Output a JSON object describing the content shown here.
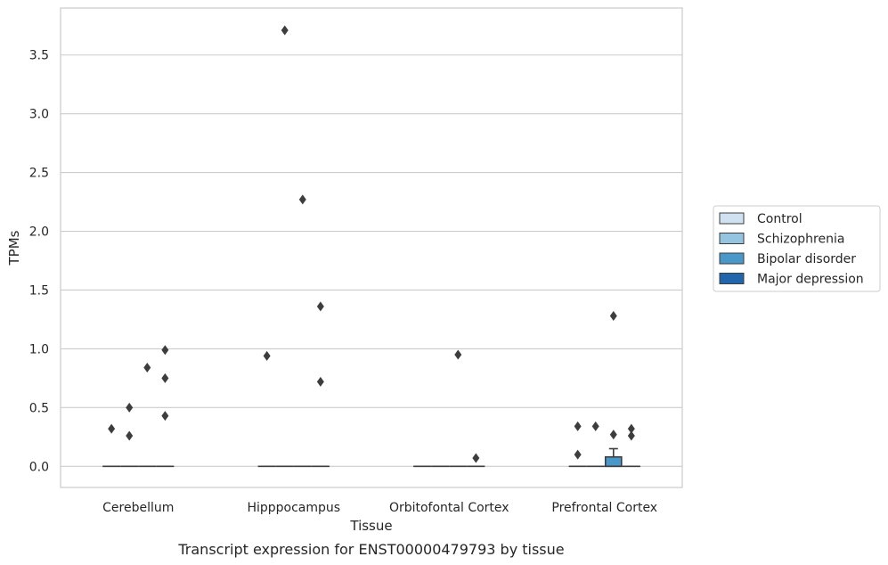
{
  "chart_data": {
    "type": "box",
    "xlabel": "Tissue",
    "ylabel": "TPMs",
    "caption": "Transcript expression for ENST00000479793 by tissue",
    "categories": [
      "Cerebellum",
      "Hipppocampus",
      "Orbitofontal Cortex",
      "Prefrontal Cortex"
    ],
    "ylim": [
      -0.18,
      3.9
    ],
    "yticks": [
      0.0,
      0.5,
      1.0,
      1.5,
      2.0,
      2.5,
      3.0,
      3.5
    ],
    "ytick_labels": [
      "0.0",
      "0.5",
      "1.0",
      "1.5",
      "2.0",
      "2.5",
      "3.0",
      "3.5"
    ],
    "grid": "horizontal",
    "legend": {
      "placement": "right",
      "entries": [
        "Control",
        "Schizophrenia",
        "Bipolar disorder",
        "Major depression"
      ]
    },
    "series": [
      {
        "name": "Control",
        "color": "#d0e1f2",
        "boxes": [
          {
            "category": "Cerebellum",
            "q1": 0,
            "median": 0,
            "q3": 0,
            "whisker_low": 0,
            "whisker_high": 0,
            "outliers": [
              0.32
            ]
          },
          {
            "category": "Hipppocampus",
            "q1": 0,
            "median": 0,
            "q3": 0,
            "whisker_low": 0,
            "whisker_high": 0,
            "outliers": [
              0.94
            ]
          },
          {
            "category": "Orbitofontal Cortex",
            "q1": 0,
            "median": 0,
            "q3": 0,
            "whisker_low": 0,
            "whisker_high": 0,
            "outliers": []
          },
          {
            "category": "Prefrontal Cortex",
            "q1": 0,
            "median": 0,
            "q3": 0,
            "whisker_low": 0,
            "whisker_high": 0,
            "outliers": [
              0.1,
              0.34
            ]
          }
        ]
      },
      {
        "name": "Schizophrenia",
        "color": "#94c4df",
        "boxes": [
          {
            "category": "Cerebellum",
            "q1": 0,
            "median": 0,
            "q3": 0,
            "whisker_low": 0,
            "whisker_high": 0,
            "outliers": [
              0.26,
              0.5
            ]
          },
          {
            "category": "Hipppocampus",
            "q1": 0,
            "median": 0,
            "q3": 0,
            "whisker_low": 0,
            "whisker_high": 0,
            "outliers": [
              3.71
            ]
          },
          {
            "category": "Orbitofontal Cortex",
            "q1": 0,
            "median": 0,
            "q3": 0,
            "whisker_low": 0,
            "whisker_high": 0,
            "outliers": []
          },
          {
            "category": "Prefrontal Cortex",
            "q1": 0,
            "median": 0,
            "q3": 0,
            "whisker_low": 0,
            "whisker_high": 0,
            "outliers": [
              0.34
            ]
          }
        ]
      },
      {
        "name": "Bipolar disorder",
        "color": "#4a98c9",
        "boxes": [
          {
            "category": "Cerebellum",
            "q1": 0,
            "median": 0,
            "q3": 0,
            "whisker_low": 0,
            "whisker_high": 0,
            "outliers": [
              0.84
            ]
          },
          {
            "category": "Hipppocampus",
            "q1": 0,
            "median": 0,
            "q3": 0,
            "whisker_low": 0,
            "whisker_high": 0,
            "outliers": [
              2.27
            ]
          },
          {
            "category": "Orbitofontal Cortex",
            "q1": 0,
            "median": 0,
            "q3": 0,
            "whisker_low": 0,
            "whisker_high": 0,
            "outliers": [
              0.95
            ]
          },
          {
            "category": "Prefrontal Cortex",
            "q1": 0,
            "median": 0,
            "q3": 0.08,
            "whisker_low": 0,
            "whisker_high": 0.15,
            "outliers": [
              0.27,
              1.28
            ]
          }
        ]
      },
      {
        "name": "Major depression",
        "color": "#2166ac",
        "boxes": [
          {
            "category": "Cerebellum",
            "q1": 0,
            "median": 0,
            "q3": 0,
            "whisker_low": 0,
            "whisker_high": 0,
            "outliers": [
              0.43,
              0.75,
              0.99
            ]
          },
          {
            "category": "Hipppocampus",
            "q1": 0,
            "median": 0,
            "q3": 0,
            "whisker_low": 0,
            "whisker_high": 0,
            "outliers": [
              0.72,
              1.36
            ]
          },
          {
            "category": "Orbitofontal Cortex",
            "q1": 0,
            "median": 0,
            "q3": 0,
            "whisker_low": 0,
            "whisker_high": 0,
            "outliers": [
              0.07
            ]
          },
          {
            "category": "Prefrontal Cortex",
            "q1": 0,
            "median": 0,
            "q3": 0,
            "whisker_low": 0,
            "whisker_high": 0,
            "outliers": [
              0.26,
              0.32
            ]
          }
        ]
      }
    ]
  }
}
